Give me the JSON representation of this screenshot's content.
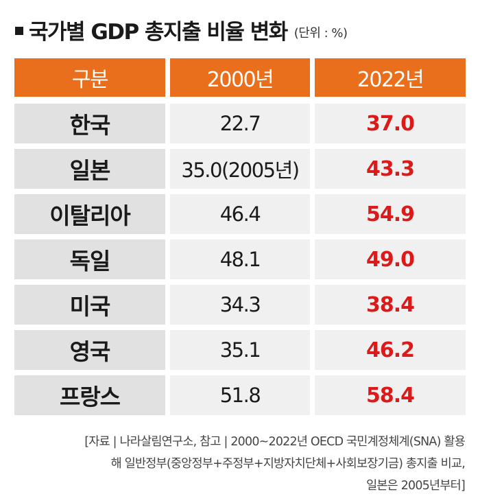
{
  "title": "국가별 GDP 총지출 비율 변화",
  "unit": "(단위 : %)",
  "chart_data": {
    "type": "table",
    "title": "국가별 GDP 총지출 비율 변화",
    "unit": "%",
    "columns": [
      "구분",
      "2000년",
      "2022년"
    ],
    "rows": [
      {
        "country": "한국",
        "y2000": "22.7",
        "y2022": "37.0"
      },
      {
        "country": "일본",
        "y2000": "35.0(2005년)",
        "y2022": "43.3"
      },
      {
        "country": "이탈리아",
        "y2000": "46.4",
        "y2022": "54.9"
      },
      {
        "country": "독일",
        "y2000": "48.1",
        "y2022": "49.0"
      },
      {
        "country": "미국",
        "y2000": "34.3",
        "y2022": "38.4"
      },
      {
        "country": "영국",
        "y2000": "35.1",
        "y2022": "46.2"
      },
      {
        "country": "프랑스",
        "y2000": "51.8",
        "y2022": "58.4"
      }
    ]
  },
  "source_lines": [
    "[자료 | 나라살림연구소, 참고 | 2000~2022년 OECD 국민계정체계(SNA) 활용",
    "해 일반정부(중앙정부+주정부+지방자치단체+사회보장기금) 총지출 비교,",
    "일본은 2005년부터]"
  ],
  "colors": {
    "header_bg": "#e96f1c",
    "highlight_text": "#dd1a1a",
    "label_bg": "#e1e1e1",
    "value_bg": "#f0f0f0"
  }
}
